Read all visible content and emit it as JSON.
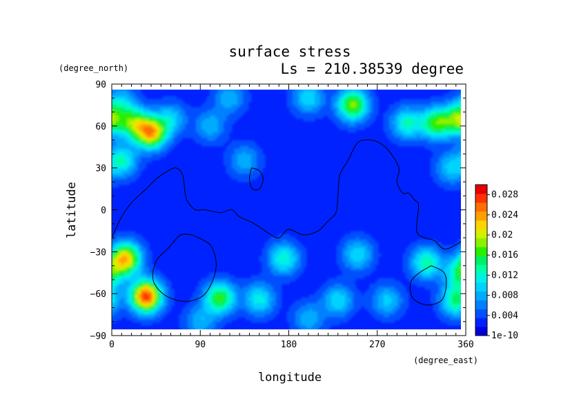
{
  "chart_data": {
    "type": "heatmap",
    "title": "surface stress",
    "subtitle": "Ls = 210.38539 degree",
    "xlabel": "longitude",
    "ylabel": "latitude",
    "x_unit": "(degree_east)",
    "y_unit": "(degree_north)",
    "xlim": [
      0,
      360
    ],
    "ylim": [
      -90,
      90
    ],
    "x_ticks": [
      0,
      90,
      180,
      270,
      360
    ],
    "x_tick_labels": [
      "0",
      "90",
      "180",
      "270",
      "360"
    ],
    "y_ticks": [
      -90,
      -60,
      -30,
      0,
      30,
      60,
      90
    ],
    "y_tick_labels": [
      "−90",
      "−60",
      "−30",
      "0",
      "30",
      "60",
      "90"
    ],
    "colorbar": {
      "min": 0,
      "max": 0.03,
      "tick_values": [
        0,
        0.004,
        0.008,
        0.012,
        0.016,
        0.02,
        0.024,
        0.028
      ],
      "tick_labels": [
        "1e-10",
        "0.004",
        "0.008",
        "0.012",
        "0.016",
        "0.02",
        "0.024",
        "0.028"
      ]
    },
    "background_level": 0.0025,
    "hotspots": [
      {
        "lon": 40,
        "lat": 55,
        "value": 0.02
      },
      {
        "lon": 22,
        "lat": 62,
        "value": 0.013
      },
      {
        "lon": 10,
        "lat": 35,
        "value": 0.01
      },
      {
        "lon": 60,
        "lat": 65,
        "value": 0.007
      },
      {
        "lon": 100,
        "lat": 60,
        "value": 0.006
      },
      {
        "lon": 135,
        "lat": 35,
        "value": 0.006
      },
      {
        "lon": 245,
        "lat": 75,
        "value": 0.016
      },
      {
        "lon": 200,
        "lat": 80,
        "value": 0.008
      },
      {
        "lon": 330,
        "lat": 62,
        "value": 0.014
      },
      {
        "lon": 355,
        "lat": 65,
        "value": 0.016
      },
      {
        "lon": 300,
        "lat": 62,
        "value": 0.01
      },
      {
        "lon": 345,
        "lat": 30,
        "value": 0.007
      },
      {
        "lon": 10,
        "lat": 78,
        "value": 0.006
      },
      {
        "lon": 120,
        "lat": 80,
        "value": 0.006
      },
      {
        "lon": 14,
        "lat": -35,
        "value": 0.02
      },
      {
        "lon": 35,
        "lat": -62,
        "value": 0.025
      },
      {
        "lon": 110,
        "lat": -63,
        "value": 0.014
      },
      {
        "lon": 150,
        "lat": -64,
        "value": 0.009
      },
      {
        "lon": 175,
        "lat": -35,
        "value": 0.01
      },
      {
        "lon": 250,
        "lat": -32,
        "value": 0.008
      },
      {
        "lon": 320,
        "lat": -38,
        "value": 0.011
      },
      {
        "lon": 355,
        "lat": -45,
        "value": 0.012
      },
      {
        "lon": 350,
        "lat": -65,
        "value": 0.012
      },
      {
        "lon": 230,
        "lat": -65,
        "value": 0.008
      },
      {
        "lon": 280,
        "lat": -65,
        "value": 0.007
      },
      {
        "lon": 90,
        "lat": -80,
        "value": 0.006
      },
      {
        "lon": 200,
        "lat": -78,
        "value": 0.006
      }
    ],
    "contours": [
      [
        [
          0,
          -20
        ],
        [
          10,
          -5
        ],
        [
          20,
          5
        ],
        [
          35,
          15
        ],
        [
          45,
          22
        ],
        [
          55,
          27
        ],
        [
          65,
          30
        ],
        [
          72,
          25
        ],
        [
          75,
          10
        ],
        [
          78,
          5
        ],
        [
          85,
          0
        ],
        [
          95,
          0
        ],
        [
          110,
          -2
        ],
        [
          122,
          0
        ],
        [
          130,
          -5
        ],
        [
          145,
          -10
        ],
        [
          160,
          -17
        ],
        [
          170,
          -20
        ],
        [
          180,
          -14
        ],
        [
          195,
          -18
        ],
        [
          210,
          -15
        ],
        [
          220,
          -8
        ],
        [
          228,
          -2
        ],
        [
          230,
          10
        ],
        [
          232,
          25
        ],
        [
          240,
          35
        ],
        [
          250,
          48
        ],
        [
          262,
          50
        ],
        [
          272,
          48
        ],
        [
          282,
          42
        ],
        [
          292,
          30
        ],
        [
          290,
          20
        ],
        [
          296,
          12
        ],
        [
          302,
          12
        ],
        [
          308,
          7
        ],
        [
          312,
          3
        ],
        [
          310,
          -15
        ],
        [
          318,
          -20
        ],
        [
          328,
          -22
        ],
        [
          338,
          -28
        ],
        [
          350,
          -25
        ],
        [
          360,
          -20
        ]
      ],
      [
        [
          142,
          30
        ],
        [
          150,
          28
        ],
        [
          154,
          22
        ],
        [
          150,
          15
        ],
        [
          143,
          15
        ],
        [
          140,
          22
        ],
        [
          142,
          30
        ]
      ],
      [
        [
          82,
          -18
        ],
        [
          70,
          -18
        ],
        [
          58,
          -27
        ],
        [
          45,
          -37
        ],
        [
          42,
          -50
        ],
        [
          52,
          -60
        ],
        [
          68,
          -65
        ],
        [
          82,
          -65
        ],
        [
          95,
          -60
        ],
        [
          104,
          -48
        ],
        [
          106,
          -37
        ],
        [
          100,
          -25
        ],
        [
          82,
          -18
        ]
      ],
      [
        [
          325,
          -40
        ],
        [
          313,
          -45
        ],
        [
          304,
          -52
        ],
        [
          306,
          -63
        ],
        [
          320,
          -68
        ],
        [
          335,
          -65
        ],
        [
          340,
          -55
        ],
        [
          338,
          -45
        ],
        [
          325,
          -40
        ]
      ]
    ]
  }
}
